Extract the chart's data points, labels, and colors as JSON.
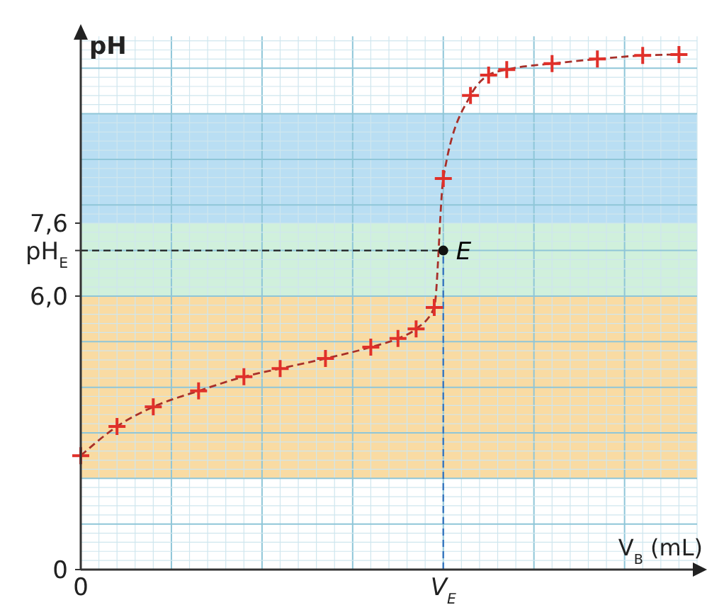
{
  "chart_data": {
    "type": "line",
    "xlabel": "V$_{B}$ (mL)",
    "ylabel": "pH",
    "categories": [
      "0",
      null,
      null,
      null,
      null,
      null,
      null,
      null,
      null,
      null,
      null,
      null,
      null,
      null,
      null,
      null,
      null,
      null,
      null,
      null,
      null,
      null,
      null,
      null,
      null,
      null,
      null,
      null,
      null,
      null,
      null,
      null,
      null,
      null,
      null,
      null,
      null,
      null,
      null,
      null,
      "V$_{E}$",
      null,
      null,
      null,
      null,
      null,
      null,
      null,
      null,
      null,
      null,
      null,
      null,
      null,
      null,
      null,
      null,
      null,
      null,
      null,
      null,
      null,
      null,
      null,
      null,
      null,
      null,
      null,
      null
    ],
    "ylim": [
      0,
      11.7
    ],
    "yticks": [
      {
        "value": 0,
        "label": "0"
      },
      {
        "value": 6.0,
        "label": "6,0"
      },
      {
        "value": 7.6,
        "label": "7,6"
      },
      {
        "value": 7.0,
        "label": "pH$_{E}$"
      }
    ],
    "grid": true,
    "marker": "cross",
    "line_style": "dashed",
    "series": [
      {
        "color": "#e0302a",
        "values": [
          2.5,
          null,
          null,
          null,
          3.14,
          null,
          null,
          null,
          3.57,
          null,
          null,
          null,
          null,
          3.92,
          null,
          null,
          null,
          null,
          4.23,
          null,
          null,
          null,
          4.41,
          null,
          null,
          null,
          null,
          4.63,
          null,
          null,
          null,
          null,
          4.88,
          null,
          null,
          5.07,
          null,
          5.28,
          null,
          5.75,
          8.58,
          null,
          null,
          10.4,
          null,
          10.85,
          null,
          10.97,
          null,
          null,
          null,
          null,
          11.1,
          null,
          null,
          null,
          null,
          11.2,
          null,
          null,
          null,
          null,
          11.28,
          null,
          null,
          null,
          11.3,
          null,
          null
        ]
      }
    ],
    "bands": [
      {
        "axis": "y",
        "from": 2.0,
        "to": 6.0,
        "color": "#f9dba3"
      },
      {
        "axis": "y",
        "from": 6.0,
        "to": 7.6,
        "color": "#d0f0dc"
      },
      {
        "axis": "y",
        "from": 7.6,
        "to": 10.0,
        "color": "#b9def3"
      }
    ],
    "ref_lines": [
      {
        "axis": "x",
        "value": "V$_{E}$",
        "color": "#3a78c0",
        "line_style": "dashed"
      },
      {
        "axis": "y",
        "value": 7.0,
        "color": "#222222",
        "line_style": "dashed"
      }
    ],
    "annotations": [
      {
        "text": "E",
        "x": "V$_{E}$",
        "y": 7.0
      }
    ]
  }
}
